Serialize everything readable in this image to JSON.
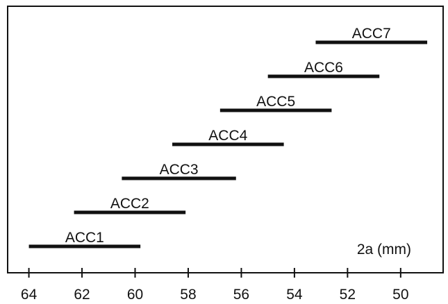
{
  "chart_data": {
    "type": "bar",
    "orientation": "horizontal-range",
    "xlabel": "2a (mm)",
    "xlim": [
      64.8,
      48.4
    ],
    "x_reversed": true,
    "xticks": [
      64,
      62,
      60,
      58,
      56,
      54,
      52,
      50
    ],
    "grid": false,
    "series": [
      {
        "name": "ACC1",
        "start": 64.0,
        "end": 59.8
      },
      {
        "name": "ACC2",
        "start": 62.3,
        "end": 58.1
      },
      {
        "name": "ACC3",
        "start": 60.5,
        "end": 56.2
      },
      {
        "name": "ACC4",
        "start": 58.6,
        "end": 54.4
      },
      {
        "name": "ACC5",
        "start": 56.8,
        "end": 52.6
      },
      {
        "name": "ACC6",
        "start": 55.0,
        "end": 50.8
      },
      {
        "name": "ACC7",
        "start": 53.2,
        "end": 49.0
      }
    ]
  }
}
